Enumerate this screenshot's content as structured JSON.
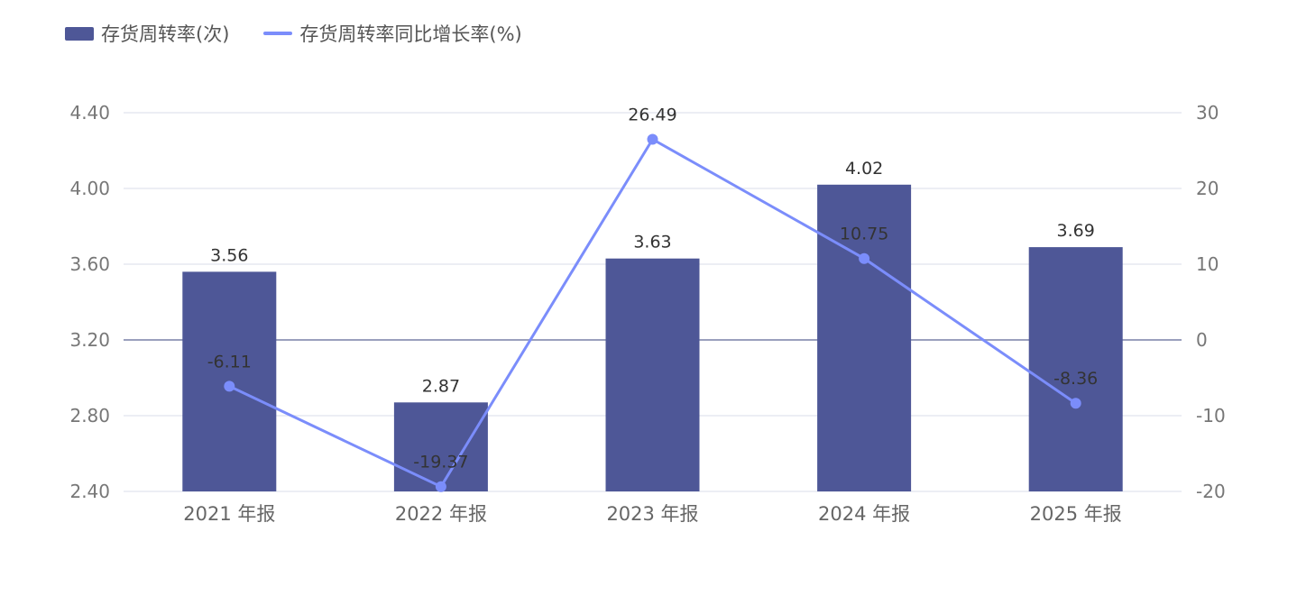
{
  "chart_data": {
    "type": "bar+line",
    "categories": [
      "2021 年报",
      "2022 年报",
      "2023 年报",
      "2024 年报",
      "2025 年报"
    ],
    "series": [
      {
        "name": "存货周转率(次)",
        "type": "bar",
        "axis": "left",
        "values": [
          3.56,
          2.87,
          3.63,
          4.02,
          3.69
        ],
        "labels": [
          "3.56",
          "2.87",
          "3.63",
          "4.02",
          "3.69"
        ],
        "color": "#4e5797"
      },
      {
        "name": "存货周转率同比增长率(%)",
        "type": "line",
        "axis": "right",
        "values": [
          -6.11,
          -19.37,
          26.49,
          10.75,
          -8.36
        ],
        "labels": [
          "-6.11",
          "-19.37",
          "26.49",
          "10.75",
          "-8.36"
        ],
        "color": "#7b8dfb"
      }
    ],
    "left_axis": {
      "ylim": [
        2.4,
        4.4
      ],
      "ticks": [
        "2.40",
        "2.80",
        "3.20",
        "3.60",
        "4.00",
        "4.40"
      ]
    },
    "right_axis": {
      "ylim": [
        -20,
        30
      ],
      "ticks": [
        "-20",
        "-10",
        "0",
        "10",
        "20",
        "30"
      ]
    },
    "grid": true,
    "legend": "top-left"
  }
}
